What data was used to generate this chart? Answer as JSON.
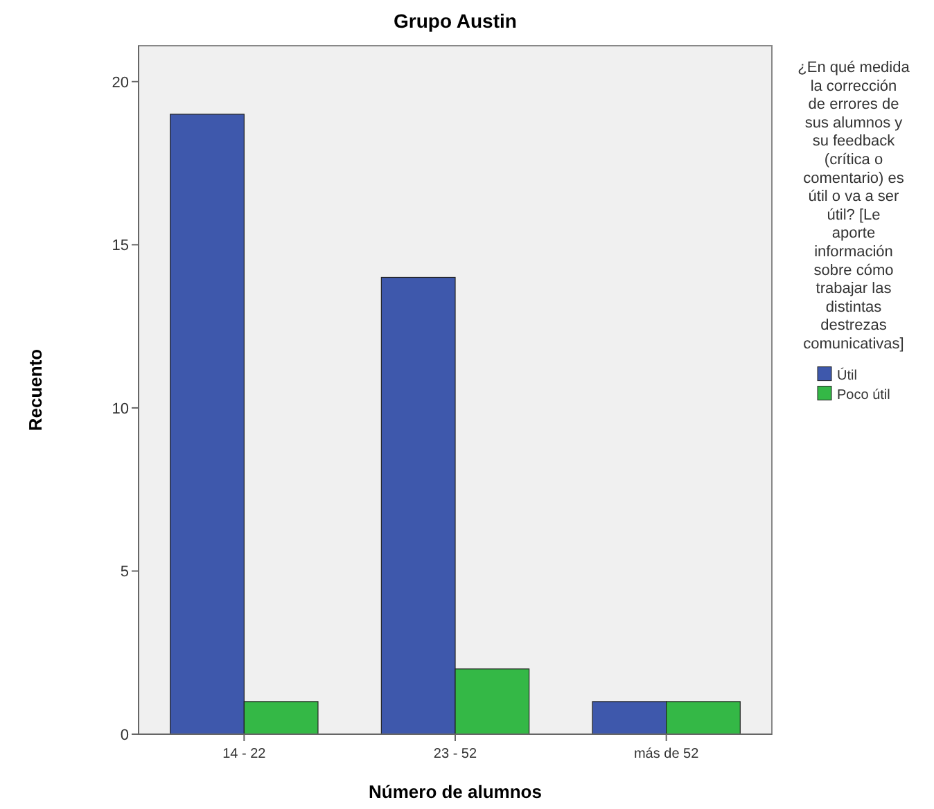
{
  "chart_data": {
    "type": "bar",
    "title": "Grupo Austin",
    "xlabel": "Número de alumnos",
    "ylabel": "Recuento",
    "legend_title": "¿En qué medida la corrección de errores de sus alumnos y su feedback (crítica o comentario) es útil o va a ser útil? [Le aporte información sobre cómo trabajar las distintas destrezas comunicativas]",
    "categories": [
      "14 - 22",
      "23 - 52",
      "más de 52"
    ],
    "series": [
      {
        "name": "Útil",
        "color": "#3e58ac",
        "values": [
          19,
          14,
          1
        ]
      },
      {
        "name": "Poco útil",
        "color": "#34b846",
        "values": [
          1,
          2,
          1
        ]
      }
    ],
    "ylim": [
      0,
      21.1
    ],
    "yticks": [
      0,
      5,
      10,
      15,
      20
    ],
    "grid": false,
    "legend": "right"
  }
}
